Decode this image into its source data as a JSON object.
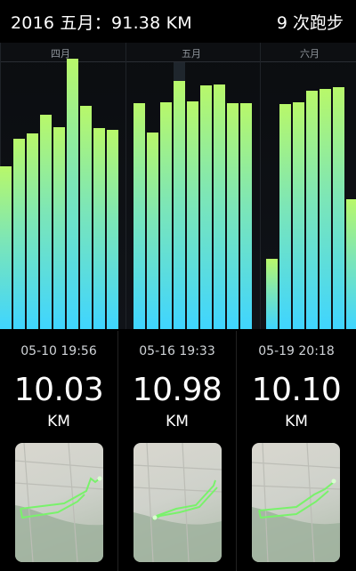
{
  "header": {
    "title": "2016 五月：91.38 KM",
    "runs": "9 次跑步"
  },
  "chart": {
    "months": [
      "四月",
      "五月",
      "六月"
    ],
    "bar_colors": {
      "bottom": "#3fd5ff",
      "top": "#b8f86a"
    }
  },
  "runs": [
    {
      "date": "05-10 19:56",
      "distance": "10.03",
      "unit": "KM"
    },
    {
      "date": "05-16 19:33",
      "distance": "10.98",
      "unit": "KM"
    },
    {
      "date": "05-19 20:18",
      "distance": "10.10",
      "unit": "KM"
    }
  ]
}
